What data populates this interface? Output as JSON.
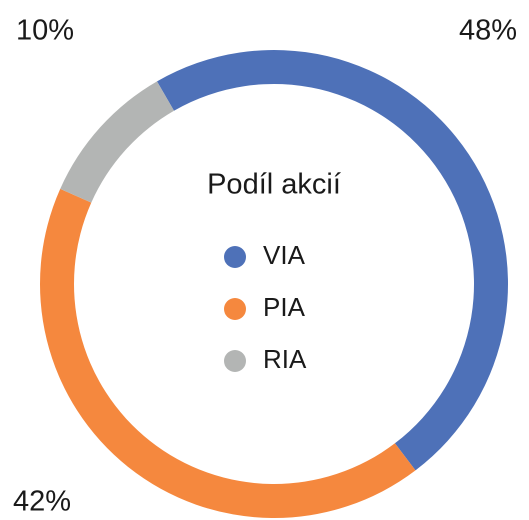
{
  "chart_data": {
    "type": "donut",
    "title": "Podíl akcií",
    "categories": [
      "VIA",
      "PIA",
      "RIA"
    ],
    "values": [
      48,
      42,
      10
    ],
    "value_labels": [
      "48%",
      "42%",
      "10%"
    ],
    "colors": [
      "#4e71b8",
      "#f5883e",
      "#b3b5b4"
    ]
  }
}
